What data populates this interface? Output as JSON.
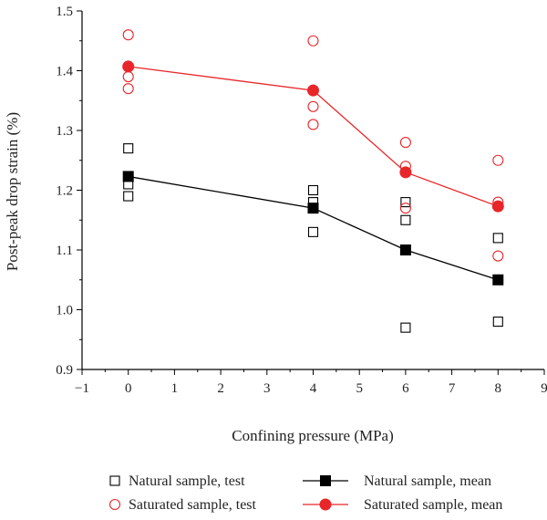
{
  "chart_data": {
    "type": "scatter",
    "title": "",
    "xlabel": "Confining pressure (MPa)",
    "ylabel": "Post-peak drop strain (%)",
    "xlim": [
      -1,
      9
    ],
    "ylim": [
      0.9,
      1.5
    ],
    "xticks": [
      -1,
      0,
      1,
      2,
      3,
      4,
      5,
      6,
      7,
      8,
      9
    ],
    "yticks": [
      0.9,
      1.0,
      1.1,
      1.2,
      1.3,
      1.4,
      1.5
    ],
    "ytick_labels": [
      "0.9",
      "1.0",
      "1.1",
      "1.2",
      "1.3",
      "1.4",
      "1.5"
    ],
    "grid": false,
    "legend_position": "bottom",
    "series": [
      {
        "name": "Natural sample, test",
        "kind": "markers",
        "marker": "open-square",
        "color": "#000000",
        "points": [
          {
            "x": 0,
            "y": 1.27
          },
          {
            "x": 0,
            "y": 1.21
          },
          {
            "x": 0,
            "y": 1.19
          },
          {
            "x": 4,
            "y": 1.2
          },
          {
            "x": 4,
            "y": 1.18
          },
          {
            "x": 4,
            "y": 1.13
          },
          {
            "x": 6,
            "y": 1.18
          },
          {
            "x": 6,
            "y": 1.15
          },
          {
            "x": 6,
            "y": 0.97
          },
          {
            "x": 8,
            "y": 1.12
          },
          {
            "x": 8,
            "y": 0.98
          }
        ]
      },
      {
        "name": "Saturated sample, test",
        "kind": "markers",
        "marker": "open-circle",
        "color": "#e8262a",
        "points": [
          {
            "x": 0,
            "y": 1.46
          },
          {
            "x": 0,
            "y": 1.39
          },
          {
            "x": 0,
            "y": 1.37
          },
          {
            "x": 4,
            "y": 1.45
          },
          {
            "x": 4,
            "y": 1.34
          },
          {
            "x": 4,
            "y": 1.31
          },
          {
            "x": 6,
            "y": 1.28
          },
          {
            "x": 6,
            "y": 1.24
          },
          {
            "x": 6,
            "y": 1.17
          },
          {
            "x": 8,
            "y": 1.25
          },
          {
            "x": 8,
            "y": 1.18
          },
          {
            "x": 8,
            "y": 1.09
          }
        ]
      },
      {
        "name": "Natural sample, mean",
        "kind": "line-markers",
        "marker": "filled-square",
        "color": "#000000",
        "points": [
          {
            "x": 0,
            "y": 1.223
          },
          {
            "x": 4,
            "y": 1.17
          },
          {
            "x": 6,
            "y": 1.1
          },
          {
            "x": 8,
            "y": 1.05
          }
        ]
      },
      {
        "name": "Saturated sample, mean",
        "kind": "line-markers",
        "marker": "filled-circle",
        "color": "#e8262a",
        "points": [
          {
            "x": 0,
            "y": 1.407
          },
          {
            "x": 4,
            "y": 1.367
          },
          {
            "x": 6,
            "y": 1.23
          },
          {
            "x": 8,
            "y": 1.173
          }
        ]
      }
    ]
  }
}
